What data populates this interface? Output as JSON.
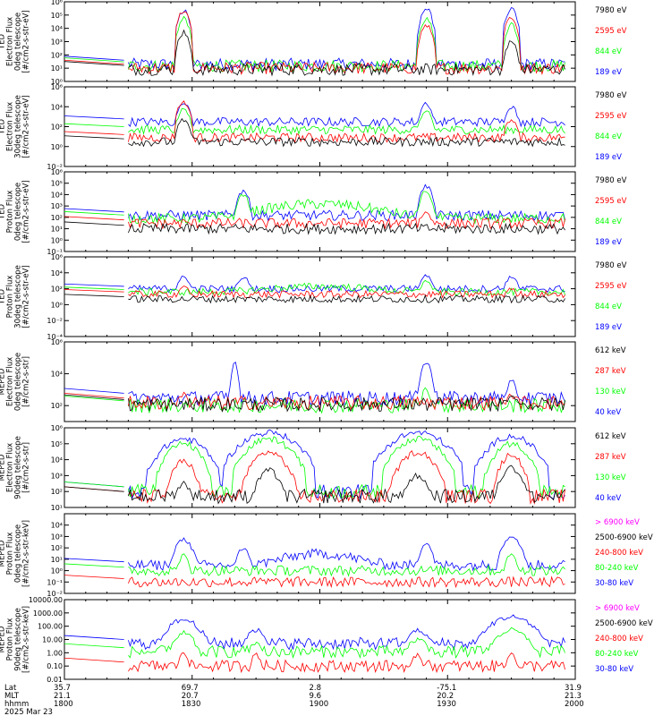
{
  "colors": {
    "black": "#000000",
    "red": "#ff0000",
    "green": "#00ff00",
    "blue": "#0000ff",
    "magenta": "#ff00ff"
  },
  "footer": {
    "row_labels": [
      "Lat",
      "MLT",
      "hhmm"
    ],
    "date": "2025 Mar 23",
    "ticks": [
      {
        "lat": "35.7",
        "mlt": "21.1",
        "hhmm": "1800"
      },
      {
        "lat": "69.7",
        "mlt": "20.7",
        "hhmm": "1830"
      },
      {
        "lat": "2.8",
        "mlt": "9.6",
        "hhmm": "1900"
      },
      {
        "lat": "-75.1",
        "mlt": "20.2",
        "hhmm": "1930"
      },
      {
        "lat": "31.9",
        "mlt": "21.3",
        "hhmm": "2000"
      }
    ]
  },
  "chart_data": [
    {
      "type": "line",
      "ylabel": [
        "TED",
        "Electron Flux",
        "0deg telescope",
        "[#/cm2-s-str-eV]"
      ],
      "scale": "log",
      "ylim": [
        1,
        1000000
      ],
      "tick_labels": [
        "10⁰",
        "10¹",
        "10²",
        "10³",
        "10⁴",
        "10⁵",
        "10⁶"
      ],
      "tick_values": [
        1,
        10,
        100,
        1000,
        10000,
        100000,
        1000000
      ],
      "legend": [
        "7980 eV",
        "2595 eV",
        "844 eV",
        "189 eV"
      ],
      "legend_colors": [
        "black",
        "red",
        "green",
        "blue"
      ],
      "series": [
        {
          "color": "blue",
          "base": 20,
          "events": [
            [
              1828,
              200000.0,
              1
            ],
            [
              1925,
              300000.0,
              1
            ],
            [
              1945,
              300000.0,
              1
            ]
          ]
        },
        {
          "color": "green",
          "base": 15,
          "events": [
            [
              1828,
              50000.0,
              1
            ],
            [
              1925,
              50000.0,
              1
            ],
            [
              1945,
              20000.0,
              1
            ]
          ]
        },
        {
          "color": "red",
          "base": 10,
          "events": [
            [
              1828,
              200000.0,
              1
            ],
            [
              1925,
              20000.0,
              1
            ],
            [
              1945,
              80000.0,
              1
            ]
          ]
        },
        {
          "color": "black",
          "base": 8,
          "events": [
            [
              1828,
              5000.0,
              1
            ],
            [
              1945,
              1000.0,
              1
            ]
          ]
        }
      ]
    },
    {
      "type": "line",
      "ylabel": [
        "TED",
        "Electron Flux",
        "30deg telescope",
        "[#/cm2-s-str-eV]"
      ],
      "scale": "log",
      "ylim": [
        0.01,
        1000000
      ],
      "tick_labels": [
        "10⁻²",
        "10⁰",
        "10²",
        "10⁴",
        "10⁶"
      ],
      "tick_values": [
        0.01,
        1,
        100,
        10000,
        1000000
      ],
      "legend": [
        "7980 eV",
        "2595 eV",
        "844 eV",
        "189 eV"
      ],
      "legend_colors": [
        "black",
        "red",
        "green",
        "blue"
      ],
      "series": [
        {
          "color": "blue",
          "base": 300,
          "events": [
            [
              1828,
              30000.0,
              1
            ],
            [
              1925,
              20000.0,
              1
            ],
            [
              1945,
              10000.0,
              1
            ]
          ]
        },
        {
          "color": "green",
          "base": 50,
          "events": [
            [
              1828,
              5000.0,
              1
            ],
            [
              1925,
              3000.0,
              1
            ]
          ]
        },
        {
          "color": "red",
          "base": 8,
          "events": [
            [
              1828,
              30000.0,
              1
            ],
            [
              1945,
              500,
              1
            ]
          ]
        },
        {
          "color": "black",
          "base": 3,
          "events": [
            [
              1828,
              500,
              1
            ]
          ]
        }
      ]
    },
    {
      "type": "line",
      "ylabel": [
        "TED",
        "Proton Flux",
        "0deg telescope",
        "[#/cm2-s-str-eV]"
      ],
      "scale": "log",
      "ylim": [
        0.1,
        1000000
      ],
      "tick_labels": [
        "10⁻¹",
        "10⁰",
        "10¹",
        "10²",
        "10³",
        "10⁴",
        "10⁵",
        "10⁶"
      ],
      "tick_values": [
        0.1,
        1,
        10,
        100,
        1000,
        10000,
        100000,
        1000000
      ],
      "legend": [
        "7980 eV",
        "2595 eV",
        "844 eV",
        "189 eV"
      ],
      "legend_colors": [
        "black",
        "red",
        "green",
        "blue"
      ],
      "series": [
        {
          "color": "blue",
          "base": 150,
          "events": [
            [
              1842,
              20000.0,
              1
            ],
            [
              1925,
              50000.0,
              1
            ]
          ]
        },
        {
          "color": "green",
          "base": 80,
          "hump": [
            1900,
            1500,
            12
          ],
          "events": [
            [
              1842,
              10000.0,
              1
            ],
            [
              1925,
              20000.0,
              1
            ]
          ]
        },
        {
          "color": "red",
          "base": 30,
          "events": [
            [
              1925,
              300,
              1
            ]
          ]
        },
        {
          "color": "black",
          "base": 10,
          "events": []
        }
      ]
    },
    {
      "type": "line",
      "ylabel": [
        "TED",
        "Proton Flux",
        "30deg telescope",
        "[#/cm2-s-str-eV]"
      ],
      "scale": "log",
      "ylim": [
        0.0001,
        1000000
      ],
      "tick_labels": [
        "10⁻⁴",
        "10⁻²",
        "10⁰",
        "10²",
        "10⁴",
        "10⁶"
      ],
      "tick_values": [
        0.0001,
        0.01,
        1,
        100,
        10000,
        1000000
      ],
      "legend": [
        "7980 eV",
        "2595 eV",
        "844 eV",
        "189 eV"
      ],
      "legend_colors": [
        "black",
        "red",
        "green",
        "blue"
      ],
      "series": [
        {
          "color": "blue",
          "base": 100,
          "events": [
            [
              1828,
              3000.0,
              1
            ],
            [
              1842,
              3000.0,
              1
            ],
            [
              1925,
              5000.0,
              1
            ],
            [
              1945,
              3000.0,
              1
            ]
          ]
        },
        {
          "color": "green",
          "base": 40,
          "hump": [
            1900,
            200,
            12
          ],
          "events": [
            [
              1925,
              800,
              1
            ]
          ]
        },
        {
          "color": "red",
          "base": 20,
          "events": [
            [
              1828,
              200,
              1
            ],
            [
              1945,
              100,
              1
            ]
          ]
        },
        {
          "color": "black",
          "base": 5,
          "events": []
        }
      ]
    },
    {
      "type": "line",
      "ylabel": [
        "MEPED",
        "Electron Flux",
        "0deg telescope",
        "[#/cm2-s-str]"
      ],
      "scale": "log",
      "ylim": [
        10,
        1000000
      ],
      "tick_labels": [
        "10²",
        "10⁴",
        "10⁶"
      ],
      "tick_values": [
        100,
        10000,
        1000000
      ],
      "legend": [
        "612 keV",
        "287 keV",
        "130 keV",
        "40 keV"
      ],
      "legend_colors": [
        "black",
        "red",
        "green",
        "blue"
      ],
      "series": [
        {
          "color": "blue",
          "base": 300,
          "events": [
            [
              1840,
              50000.0,
              0.6
            ],
            [
              1925,
              50000.0,
              1
            ],
            [
              1945,
              3000.0,
              1
            ]
          ]
        },
        {
          "color": "green",
          "base": 100,
          "events": [
            [
              1925,
              1000.0,
              1
            ]
          ]
        },
        {
          "color": "red",
          "base": 150,
          "events": [
            [
              1828,
              500,
              1
            ],
            [
              1945,
              500,
              1
            ]
          ]
        },
        {
          "color": "black",
          "base": 120,
          "events": [
            [
              1945,
              300,
              2
            ]
          ]
        }
      ]
    },
    {
      "type": "line",
      "ylabel": [
        "MEPED",
        "Electron Flux",
        "90deg telescope",
        "[#/cm2-s-str]"
      ],
      "scale": "log",
      "ylim": [
        10,
        1000000
      ],
      "tick_labels": [
        "10¹",
        "10²",
        "10³",
        "10⁴",
        "10⁵",
        "10⁶"
      ],
      "tick_values": [
        10,
        100,
        1000,
        10000,
        100000,
        1000000
      ],
      "legend": [
        "612 keV",
        "287 keV",
        "130 keV",
        "40 keV"
      ],
      "legend_colors": [
        "black",
        "red",
        "green",
        "blue"
      ],
      "series": [
        {
          "color": "blue",
          "base": 100,
          "events": [
            [
              1828,
              200000.0,
              4
            ],
            [
              1848,
              500000.0,
              5
            ],
            [
              1923,
              500000.0,
              5
            ],
            [
              1945,
              300000.0,
              4
            ]
          ]
        },
        {
          "color": "green",
          "base": 100,
          "events": [
            [
              1828,
              100000.0,
              3
            ],
            [
              1848,
              200000.0,
              4
            ],
            [
              1923,
              200000.0,
              4
            ],
            [
              1945,
              100000.0,
              3
            ]
          ]
        },
        {
          "color": "red",
          "base": 50,
          "events": [
            [
              1828,
              8000.0,
              2
            ],
            [
              1848,
              30000.0,
              3
            ],
            [
              1923,
              30000.0,
              3
            ],
            [
              1945,
              20000.0,
              2
            ]
          ]
        },
        {
          "color": "black",
          "base": 50,
          "events": [
            [
              1828,
              300,
              1.5
            ],
            [
              1848,
              2000.0,
              2
            ],
            [
              1923,
              1000.0,
              2
            ],
            [
              1945,
              3000.0,
              2
            ]
          ]
        }
      ]
    },
    {
      "type": "line",
      "ylabel": [
        "MEPED",
        "Proton Flux",
        "0deg telescope",
        "[#/cm2-s-str-keV]"
      ],
      "scale": "log",
      "ylim": [
        0.01,
        100000
      ],
      "tick_labels": [
        "10⁻²",
        "10⁻¹",
        "10⁰",
        "10¹",
        "10²",
        "10³",
        "10⁴"
      ],
      "tick_values": [
        0.01,
        0.1,
        1,
        10,
        100,
        1000,
        10000
      ],
      "legend": [
        "> 6900 keV",
        "2500-6900 keV",
        "240-800 keV",
        "80-240 keV",
        "30-80 keV"
      ],
      "legend_colors": [
        "magenta",
        "black",
        "red",
        "green",
        "blue"
      ],
      "series": [
        {
          "color": "blue",
          "base": 3,
          "hump": [
            1900,
            30,
            8
          ],
          "events": [
            [
              1828,
              500,
              1.5
            ],
            [
              1842,
              100,
              1
            ],
            [
              1925,
              300,
              1
            ],
            [
              1945,
              1000.0,
              1.5
            ]
          ]
        },
        {
          "color": "green",
          "base": 1,
          "events": [
            [
              1828,
              20,
              1
            ],
            [
              1945,
              30,
              1
            ]
          ]
        },
        {
          "color": "red",
          "base": 0.1,
          "events": []
        }
      ]
    },
    {
      "type": "line",
      "ylabel": [
        "MEPED",
        "Proton Flux",
        "90deg telescope",
        "[#/cm2-s-str-keV]"
      ],
      "scale": "log",
      "ylim": [
        0.01,
        10000
      ],
      "tick_labels": [
        "0.01",
        "0.10",
        "1.00",
        "10.00",
        "100.00",
        "1000.00",
        "10000.00"
      ],
      "tick_values": [
        0.01,
        0.1,
        1,
        10,
        100,
        1000,
        10000
      ],
      "legend": [
        "> 6900 keV",
        "2500-6900 keV",
        "240-800 keV",
        "80-240 keV",
        "30-80 keV"
      ],
      "legend_colors": [
        "magenta",
        "black",
        "red",
        "green",
        "blue"
      ],
      "series": [
        {
          "color": "blue",
          "base": 5,
          "events": [
            [
              1828,
              300,
              3
            ],
            [
              1845,
              50,
              2
            ],
            [
              1923,
              50,
              2
            ],
            [
              1945,
              500,
              4
            ]
          ]
        },
        {
          "color": "green",
          "base": 1.2,
          "events": [
            [
              1828,
              30,
              2
            ],
            [
              1845,
              5,
              1.5
            ],
            [
              1923,
              10,
              2
            ],
            [
              1945,
              50,
              3
            ]
          ]
        },
        {
          "color": "red",
          "base": 0.1,
          "events": [
            [
              1828,
              1,
              1
            ],
            [
              1845,
              0.8,
              1
            ],
            [
              1923,
              0.8,
              1
            ],
            [
              1945,
              1,
              1
            ]
          ]
        }
      ]
    }
  ]
}
